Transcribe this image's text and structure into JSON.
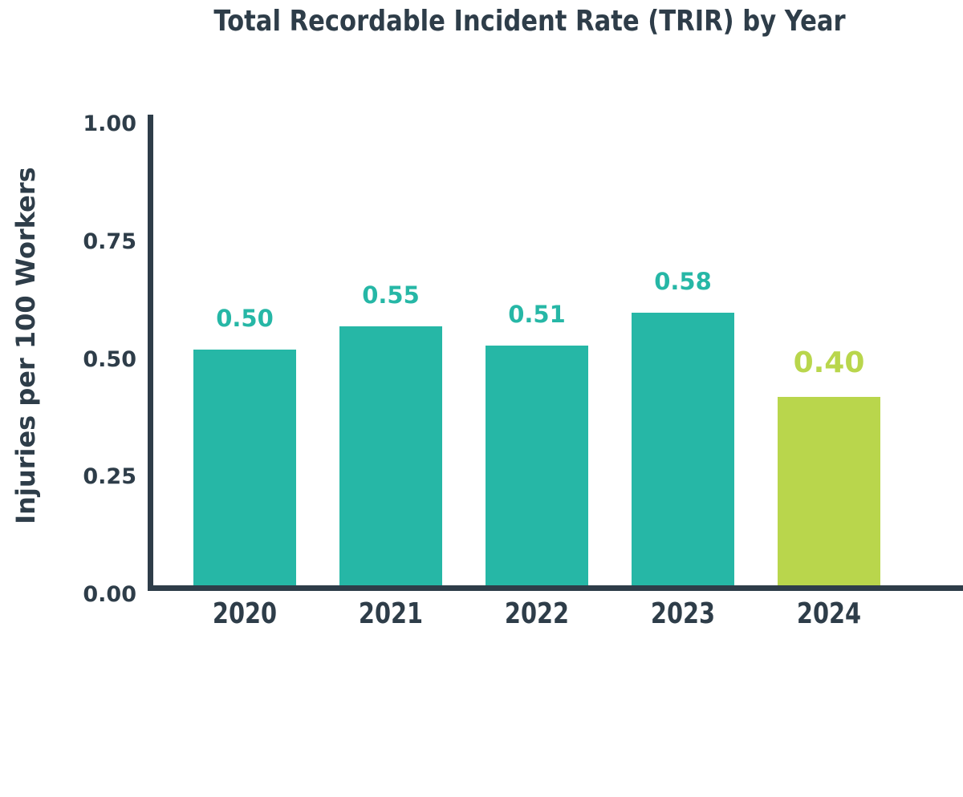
{
  "colors": {
    "background": "#ffffff",
    "text_dark": "#2e3d49",
    "teal": "#26b7a6",
    "lime": "#b9d64c"
  },
  "chart_data": {
    "type": "bar",
    "title": "Total Recordable Incident Rate (TRIR) by Year",
    "ylabel": "Injuries per 100 Workers",
    "xlabel": "",
    "categories": [
      "2020",
      "2021",
      "2022",
      "2023",
      "2024"
    ],
    "values": [
      0.5,
      0.55,
      0.51,
      0.58,
      0.4
    ],
    "value_labels": [
      "0.50",
      "0.55",
      "0.51",
      "0.58",
      "0.40"
    ],
    "bar_colors": [
      "#26b7a6",
      "#26b7a6",
      "#26b7a6",
      "#26b7a6",
      "#b9d64c"
    ],
    "highlight_index": 4,
    "yticks": [
      "1.00",
      "0.75",
      "0.50",
      "0.25",
      "0.00"
    ],
    "ylim": [
      0,
      1
    ],
    "grid": false,
    "legend": null
  }
}
